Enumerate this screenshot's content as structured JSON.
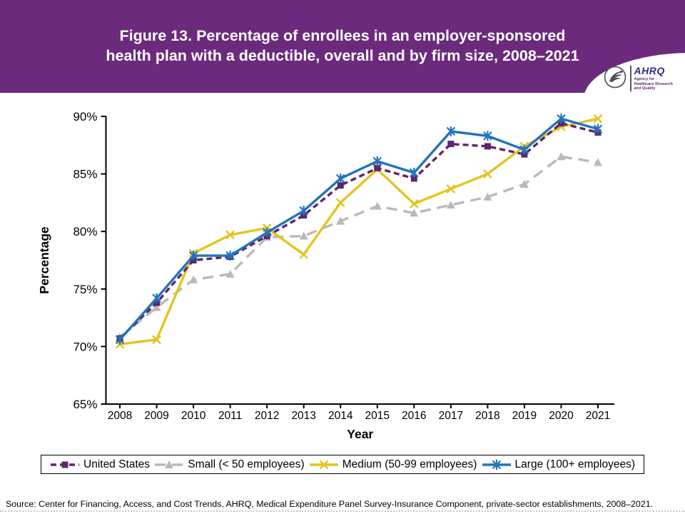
{
  "header": {
    "title_line1": "Figure 13. Percentage of enrollees in an employer-sponsored",
    "title_line2": "health plan with a deductible, overall and by firm size, 2008–2021",
    "background_color": "#6b2a7c",
    "logo": {
      "acronym": "AHRQ",
      "tagline": "Agency for Healthcare Research and Quality"
    }
  },
  "chart_data": {
    "type": "line",
    "title": "Figure 13. Percentage of enrollees in an employer-sponsored health plan with a deductible, overall and by firm size, 2008–2021",
    "xlabel": "Year",
    "ylabel": "Percentage",
    "ylim": [
      65,
      90
    ],
    "ytick_step": 5,
    "ytick_suffix": "%",
    "grid": false,
    "legend_position": "bottom",
    "categories": [
      "2008",
      "2009",
      "2010",
      "2011",
      "2012",
      "2013",
      "2014",
      "2015",
      "2016",
      "2017",
      "2018",
      "2019",
      "2020",
      "2021"
    ],
    "series": [
      {
        "name": "United States",
        "color": "#5f2569",
        "marker": "square",
        "line_style": "dashed",
        "values": [
          70.7,
          73.8,
          77.5,
          77.8,
          79.6,
          81.4,
          84.0,
          85.5,
          84.6,
          87.6,
          87.4,
          86.7,
          89.4,
          88.6
        ]
      },
      {
        "name": "Small (< 50 employees)",
        "color": "#b9b9b9",
        "marker": "triangle",
        "line_style": "long-dash",
        "values": [
          70.8,
          73.4,
          75.8,
          76.3,
          79.5,
          79.6,
          80.9,
          82.2,
          81.6,
          82.3,
          83.0,
          84.1,
          86.5,
          86.0
        ]
      },
      {
        "name": "Medium (50-99 employees)",
        "color": "#e4c41f",
        "marker": "x",
        "line_style": "solid",
        "values": [
          70.2,
          70.6,
          78.1,
          79.7,
          80.3,
          78.0,
          82.5,
          85.4,
          82.4,
          83.7,
          85.0,
          87.4,
          89.1,
          89.8
        ]
      },
      {
        "name": "Large (100+ employees)",
        "color": "#2274bb",
        "marker": "asterisk",
        "line_style": "solid",
        "values": [
          70.6,
          74.2,
          77.9,
          77.9,
          79.9,
          81.8,
          84.6,
          86.1,
          85.1,
          88.7,
          88.3,
          87.1,
          89.8,
          88.9
        ]
      }
    ]
  },
  "footer": {
    "source": "Source: Center for Financing, Access, and Cost Trends, AHRQ, Medical Expenditure Panel Survey-Insurance Component, private-sector establishments, 2008–2021."
  }
}
